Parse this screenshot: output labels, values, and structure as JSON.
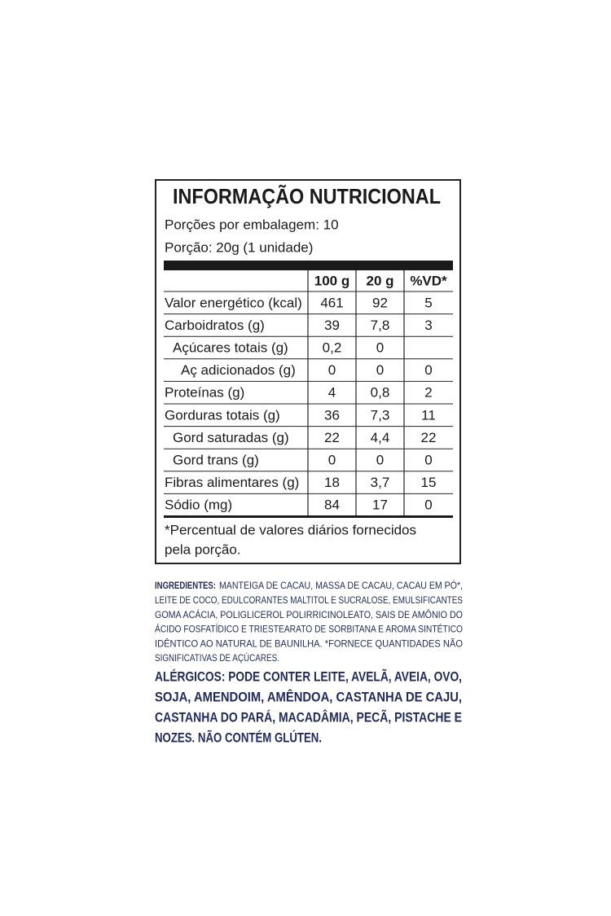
{
  "label": {
    "title": "INFORMAÇÃO NUTRICIONAL",
    "servings_per_package": "Porções por embalagem: 10",
    "serving_size": "Porção: 20g (1 unidade)",
    "table": {
      "header": [
        "100 g",
        "20 g",
        "%VD*"
      ],
      "rows": [
        [
          "Valor energético (kcal)",
          "461",
          "92",
          "5"
        ],
        [
          "Carboidratos (g)",
          "39",
          "7,8",
          "3"
        ],
        [
          "Açúcares totais (g)",
          "0,2",
          "0"
        ],
        [
          "Aç adicionados (g)",
          "0",
          "0",
          "0"
        ],
        [
          "Proteínas (g)",
          "4",
          "0,8",
          "2"
        ],
        [
          "Gorduras totais (g)",
          "36",
          "7,3",
          "11"
        ],
        [
          "Gord saturadas (g)",
          "22",
          "4,4",
          "22"
        ],
        [
          "Gord trans (g)",
          "0",
          "0",
          "0"
        ],
        [
          "Fibras alimentares (g)",
          "18",
          "3,7",
          "15"
        ],
        [
          "Sódio (mg)",
          "84",
          "17",
          "0"
        ]
      ]
    },
    "footnote": [
      "*Percentual de valores diários fornecidos",
      "pela porção."
    ]
  },
  "ingredients": {
    "label": "INGREDIENTES:",
    "lines": [
      "MANTEIGA DE CACAU, MASSA DE CACAU, CACAU EM PÓ*,",
      "LEITE DE COCO, EDULCORANTES MALTITOL E SUCRALOSE, EMULSIFICANTES",
      "GOMA ACÁCIA, POLIGLICEROL POLIRRICINOLEATO, SAIS DE AMÔNIO DO",
      "ÁCIDO FOSFATÍDICO E TRIESTEARATO DE SORBITANA E AROMA SINTÉTICO",
      "IDÊNTICO AO NATURAL DE BAUNILHA. *FORNECE QUANTIDADES NÃO",
      "SIGNIFICATIVAS DE AÇÚCARES."
    ]
  },
  "allergens": [
    "ALÉRGICOS: PODE CONTER LEITE, AVELÃ, AVEIA, OVO,",
    "SOJA, AMENDOIM, AMÊNDOA, CASTANHA DE CAJU,",
    "CASTANHA DO PARÁ, MACADÂMIA, PECÃ, PISTACHE E",
    "NOZES. NÃO CONTÉM GLÚTEN."
  ]
}
